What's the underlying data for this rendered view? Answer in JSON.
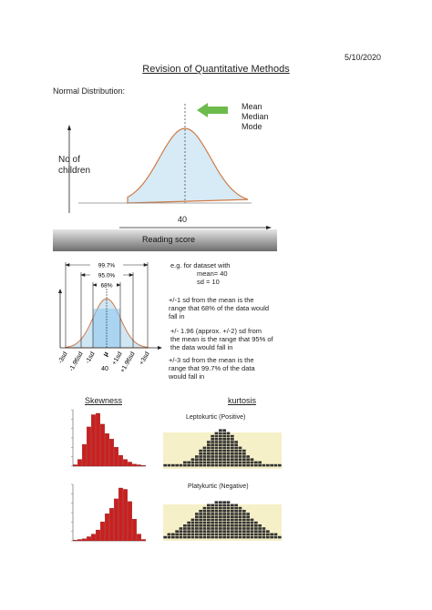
{
  "date": "5/10/2020",
  "title": "Revision of Quantitative Methods",
  "section_heading": "Normal Distribution:",
  "figure1": {
    "legend": [
      "Mean",
      "Median",
      "Mode"
    ],
    "ylabel_line1": "No of",
    "ylabel_line2": "children",
    "mean_value": "40",
    "xlabel": "Reading score",
    "arrow_color": "#6dbb4b",
    "curve_fill": "#d6ebf6",
    "curve_stroke": "#d07a45"
  },
  "figure2": {
    "bands": [
      "99.7%",
      "95.0%",
      "68%"
    ],
    "ticks": [
      "-3sd",
      "-1.96sd",
      "-1sd",
      "μ",
      "+1sd",
      "+1.96sd",
      "+3sd"
    ],
    "mean_value": "40"
  },
  "notes": {
    "example_line1": "e.g. for dataset with",
    "example_line2": "mean= 40",
    "example_line3": "sd = 10",
    "n1_line1": "+/-1 sd from the mean is the",
    "n1_line2": "range that 68% of the data would",
    "n1_line3": "fall in",
    "n2_line1": "+/- 1.96 (approx. +/-2) sd from",
    "n2_line2": "the mean is the range that 95% of",
    "n2_line3": "the data would fall in",
    "n3_line1": "+/-3 sd from the mean is the",
    "n3_line2": "range that 99.7% of the data",
    "n3_line3": "would fall in"
  },
  "skewness": {
    "title": "Skewness",
    "bar_color": "#cc1f1f",
    "positive_skew": [
      2,
      10,
      32,
      58,
      76,
      78,
      62,
      48,
      40,
      28,
      16,
      10,
      6,
      3,
      2,
      1
    ],
    "negative_skew": [
      1,
      2,
      3,
      6,
      10,
      16,
      28,
      40,
      48,
      62,
      78,
      76,
      58,
      32,
      10,
      2
    ]
  },
  "kurtosis": {
    "title": "kurtosis",
    "lepto_label": "Leptokurtic (Positive)",
    "platy_label": "Platykurtic (Negative)",
    "bg_color": "#f6f0c8",
    "bar_color": "#333333"
  }
}
